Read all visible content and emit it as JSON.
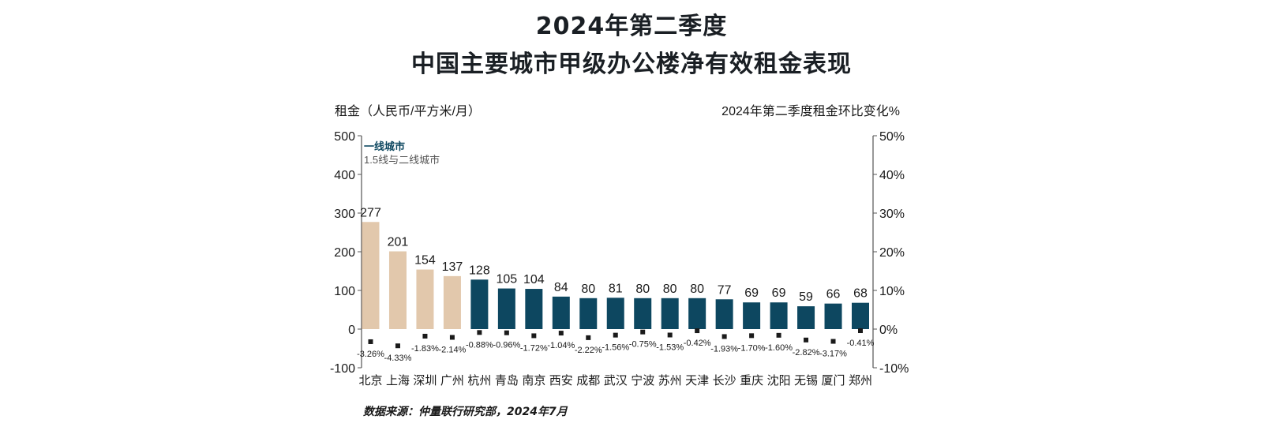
{
  "title_line1": "2024年第二季度",
  "title_line2": "中国主要城市甲级办公楼净有效租金表现",
  "source": "数据来源：仲量联行研究部，2024年7月",
  "colors": {
    "tier1": "#e2c8ac",
    "tier2": "#0d4760",
    "marker": "#1a1a1a",
    "axis": "#555555"
  },
  "chart_data": {
    "type": "bar",
    "ylabel": "租金（人民币/平方米/月）",
    "y2label": "2024年第二季度租金环比变化%",
    "ylim": [
      -100,
      500
    ],
    "yticks": [
      -100,
      0,
      100,
      200,
      300,
      400,
      500
    ],
    "y2lim": [
      -10,
      50
    ],
    "y2ticks": [
      "-10%",
      "0%",
      "10%",
      "20%",
      "30%",
      "40%",
      "50%"
    ],
    "legend": [
      "一线城市",
      "1.5线与二线城市"
    ],
    "categories": [
      "北京",
      "上海",
      "深圳",
      "广州",
      "杭州",
      "青岛",
      "南京",
      "西安",
      "成都",
      "武汉",
      "宁波",
      "苏州",
      "天津",
      "长沙",
      "重庆",
      "沈阳",
      "无锡",
      "厦门",
      "郑州"
    ],
    "series": [
      {
        "name": "一线城市",
        "axis": "left",
        "type": "bar",
        "values": [
          277,
          201,
          154,
          137,
          128,
          105,
          104,
          84,
          80,
          81,
          80,
          80,
          80,
          77,
          69,
          69,
          59,
          66,
          68
        ],
        "tier": [
          1,
          1,
          1,
          1,
          2,
          2,
          2,
          2,
          2,
          2,
          2,
          2,
          2,
          2,
          2,
          2,
          2,
          2,
          2
        ]
      },
      {
        "name": "2024年第二季度租金环比变化%",
        "axis": "right",
        "type": "scatter",
        "values": [
          -3.26,
          -4.33,
          -1.83,
          -2.14,
          -0.88,
          -0.96,
          -1.72,
          -1.04,
          -2.22,
          -1.56,
          -0.75,
          -1.53,
          -0.42,
          -1.93,
          -1.7,
          -1.6,
          -2.82,
          -3.17,
          -0.41
        ],
        "labels": [
          "-3.26%",
          "-4.33%",
          "-1.83%",
          "-2.14%",
          "-0.88%",
          "-0.96%",
          "-1.72%",
          "-1.04%",
          "-2.22%",
          "-1.56%",
          "-0.75%",
          "-1.53%",
          "-0.42%",
          "-1.93%",
          "-1.70%",
          "-1.60%",
          "-2.82%",
          "-3.17%",
          "-0.41%"
        ]
      }
    ]
  }
}
